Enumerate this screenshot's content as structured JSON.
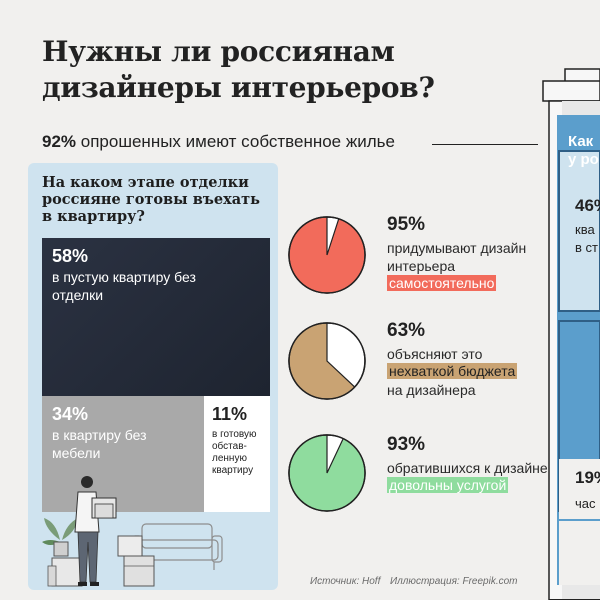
{
  "title": "Нужны ли россиянам дизайнеры интерьеров?",
  "subline": {
    "pct": "92%",
    "text": "опрошенных имеют собственное жилье"
  },
  "treemap": {
    "question": "На каком этапе отделки россияне готовы въехать в квартиру?",
    "cells": [
      {
        "pct": "58%",
        "label": "в пустую квартиру без отделки"
      },
      {
        "pct": "34%",
        "label": "в квартиру без мебели"
      },
      {
        "pct": "11%",
        "label": "в готовую обстав-ленную квартиру"
      }
    ]
  },
  "stats": [
    {
      "pct": "95%",
      "text": "придумывают дизайн интерьера",
      "highlight": "самостоятельно",
      "color": "#f26b5b"
    },
    {
      "pct": "63%",
      "text": "объясняют это",
      "highlight": "нехваткой бюджета",
      "text_after": "на дизайнера",
      "color": "#c9a373"
    },
    {
      "pct": "93%",
      "text": "обратившихся к дизайнеру",
      "highlight": "довольны услугой",
      "color": "#8fdc9e"
    }
  ],
  "side_card": {
    "title_line1": "Как",
    "title_line2": "у ро",
    "pct_top": "46%",
    "text_top_1": "ква",
    "text_top_2": "в ст",
    "pct_bottom": "19%",
    "text_bottom": "час"
  },
  "sources": {
    "source": "Источник: Hoff",
    "illustration": "Иллюстрация: Freepik.com"
  },
  "chart_data": [
    {
      "type": "treemap",
      "title": "На каком этапе отделки россияне готовы въехать в квартиру?",
      "categories": [
        "в пустую квартиру без отделки",
        "в квартиру без мебели",
        "в готовую обставленную квартиру"
      ],
      "values": [
        58,
        34,
        11
      ]
    },
    {
      "type": "pie",
      "categories": [
        "самостоятельно",
        ""
      ],
      "values": [
        95,
        5
      ],
      "colors": [
        "#f26b5b",
        "#ffffff"
      ]
    },
    {
      "type": "pie",
      "categories": [
        "нехваткой бюджета",
        ""
      ],
      "values": [
        63,
        37
      ],
      "colors": [
        "#c9a373",
        "#ffffff"
      ]
    },
    {
      "type": "pie",
      "categories": [
        "довольны услугой",
        ""
      ],
      "values": [
        93,
        7
      ],
      "colors": [
        "#8fdc9e",
        "#ffffff"
      ]
    }
  ]
}
